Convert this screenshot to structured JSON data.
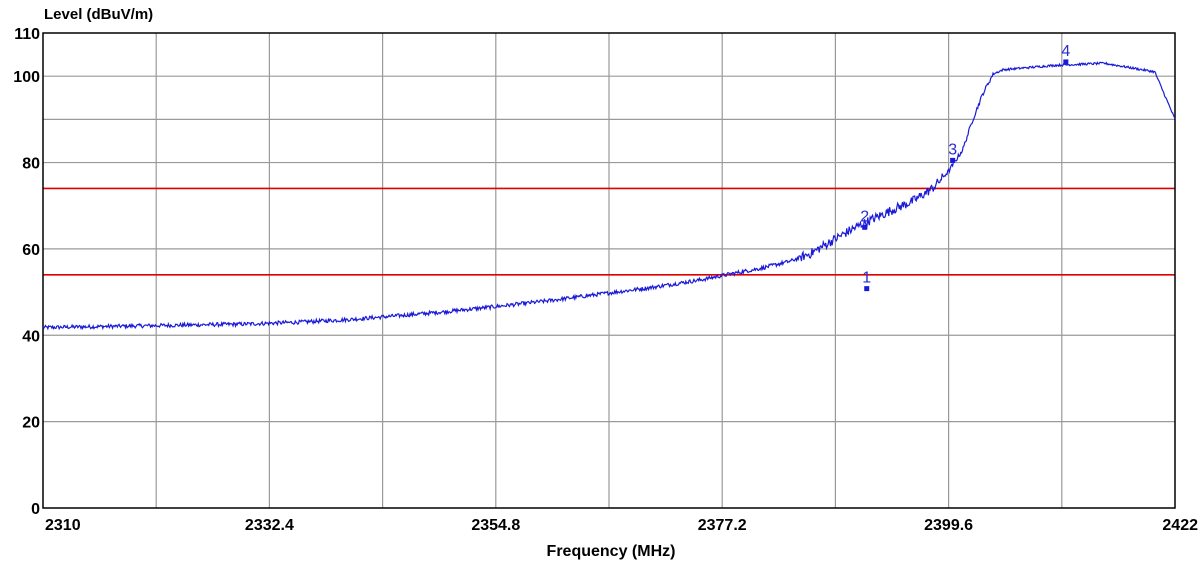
{
  "chart_data": {
    "type": "line",
    "title": "",
    "ylabel": "Level (dBuV/m)",
    "xlabel": "Frequency (MHz)",
    "xlim": [
      2310,
      2422
    ],
    "ylim": [
      0,
      110
    ],
    "x_ticks": [
      2310,
      2332.4,
      2354.8,
      2377.2,
      2399.6,
      2422
    ],
    "x_tick_labels": [
      "2310",
      "2332.4",
      "2354.8",
      "2377.2",
      "2399.6",
      "2422"
    ],
    "y_ticks": [
      0,
      20,
      40,
      60,
      80,
      100,
      110
    ],
    "y_tick_labels": [
      "0",
      "20",
      "40",
      "60",
      "80",
      "100",
      "110"
    ],
    "grid": true,
    "limit_lines": [
      {
        "y": 74,
        "color": "#e00000"
      },
      {
        "y": 54,
        "color": "#e00000"
      }
    ],
    "series": [
      {
        "color": "#1a1ad8",
        "x": [
          2310,
          2315,
          2320,
          2325,
          2330,
          2335,
          2340,
          2345,
          2350,
          2355,
          2360,
          2365,
          2370,
          2375,
          2378,
          2381,
          2384,
          2386,
          2388,
          2390,
          2392,
          2394,
          2396,
          2398,
          2399.6,
          2401,
          2402,
          2403,
          2404,
          2405,
          2410,
          2415,
          2420,
          2422
        ],
        "y": [
          41.8,
          42.0,
          42.2,
          42.4,
          42.6,
          43.0,
          43.6,
          44.5,
          45.5,
          46.7,
          48.0,
          49.5,
          51.0,
          52.8,
          54.2,
          55.5,
          57.2,
          59.0,
          61.8,
          64.5,
          66.8,
          69.0,
          71.0,
          74.0,
          78.0,
          83.0,
          90.0,
          96.0,
          100.5,
          101.5,
          102.5,
          103.0,
          101.0,
          90.0
        ]
      }
    ],
    "markers": [
      {
        "label": "1",
        "x": 2391.5,
        "y": 50.8
      },
      {
        "label": "2",
        "x": 2391.3,
        "y": 65.0
      },
      {
        "label": "3",
        "x": 2400.0,
        "y": 80.5
      },
      {
        "label": "4",
        "x": 2411.2,
        "y": 103.3
      }
    ]
  }
}
